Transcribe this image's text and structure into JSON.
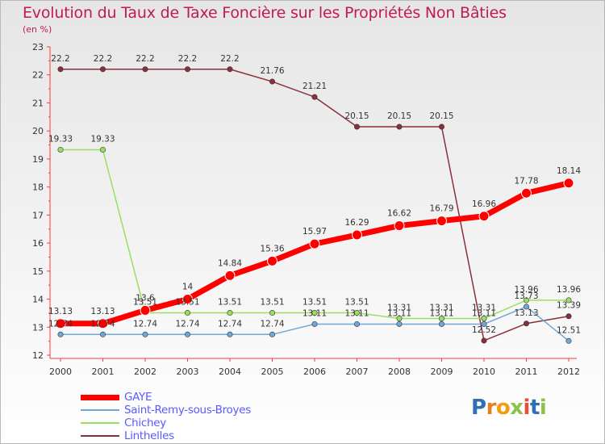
{
  "header": {
    "title": "Evolution du Taux de Taxe Foncière sur les Propriétés Non Bâties",
    "unit": "(en %)"
  },
  "logo": {
    "text": "Proxiti",
    "letter_colors": [
      "#2f6fb5",
      "#e67e22",
      "#f39c12",
      "#8bc34a",
      "#e74c3c",
      "#2f6fb5",
      "#8bc34a"
    ]
  },
  "chart_data": {
    "type": "line",
    "title": "Evolution du Taux de Taxe Foncière sur les Propriétés Non Bâties",
    "ylabel": "(en %)",
    "xlabel": "",
    "x": [
      "2000",
      "2001",
      "2002",
      "2003",
      "2004",
      "2005",
      "2006",
      "2007",
      "2008",
      "2009",
      "2010",
      "2011",
      "2012"
    ],
    "yticks": [
      12,
      13,
      14,
      15,
      16,
      17,
      18,
      19,
      20,
      21,
      22,
      23
    ],
    "ylim": [
      12,
      23
    ],
    "grid": false,
    "legend_position": "bottom-left",
    "series": [
      {
        "name": "GAYE",
        "color": "#ff0000",
        "values": [
          13.13,
          13.13,
          13.6,
          14,
          14.84,
          15.36,
          15.97,
          16.29,
          16.62,
          16.79,
          16.96,
          17.78,
          18.14
        ],
        "labels": [
          "13.13",
          "13.13",
          "13.6",
          "14",
          "14.84",
          "15.36",
          "15.97",
          "16.29",
          "16.62",
          "16.79",
          "16.96",
          "17.78",
          "18.14"
        ]
      },
      {
        "name": "Saint-Remy-sous-Broyes",
        "color": "#6fa8d6",
        "values": [
          12.74,
          12.74,
          12.74,
          12.74,
          12.74,
          12.74,
          13.11,
          13.11,
          13.11,
          13.11,
          13.11,
          13.73,
          12.51
        ],
        "labels": [
          "12.74",
          "12.74",
          "12.74",
          "12.74",
          "12.74",
          "12.74",
          "13.11",
          "13.11",
          "13.11",
          "13.11",
          "13.11",
          "13.73",
          "12.51"
        ]
      },
      {
        "name": "Chichey",
        "color": "#99e060",
        "values": [
          19.33,
          19.33,
          13.51,
          13.51,
          13.51,
          13.51,
          13.51,
          13.51,
          13.31,
          13.31,
          13.31,
          13.96,
          13.96
        ],
        "labels": [
          "19.33",
          "19.33",
          "13.51",
          "13.51",
          "13.51",
          "13.51",
          "13.51",
          "13.51",
          "13.31",
          "13.31",
          "13.31",
          "13.96",
          "13.96"
        ]
      },
      {
        "name": "Linthelles",
        "color": "#8b2f3c",
        "values": [
          22.2,
          22.2,
          22.2,
          22.2,
          22.2,
          21.76,
          21.21,
          20.15,
          20.15,
          20.15,
          12.52,
          13.13,
          13.39
        ],
        "labels": [
          "22.2",
          "22.2",
          "22.2",
          "22.2",
          "22.2",
          "21.76",
          "21.21",
          "20.15",
          "20.15",
          "20.15",
          "12.52",
          "13.13",
          "13.39"
        ]
      }
    ]
  }
}
